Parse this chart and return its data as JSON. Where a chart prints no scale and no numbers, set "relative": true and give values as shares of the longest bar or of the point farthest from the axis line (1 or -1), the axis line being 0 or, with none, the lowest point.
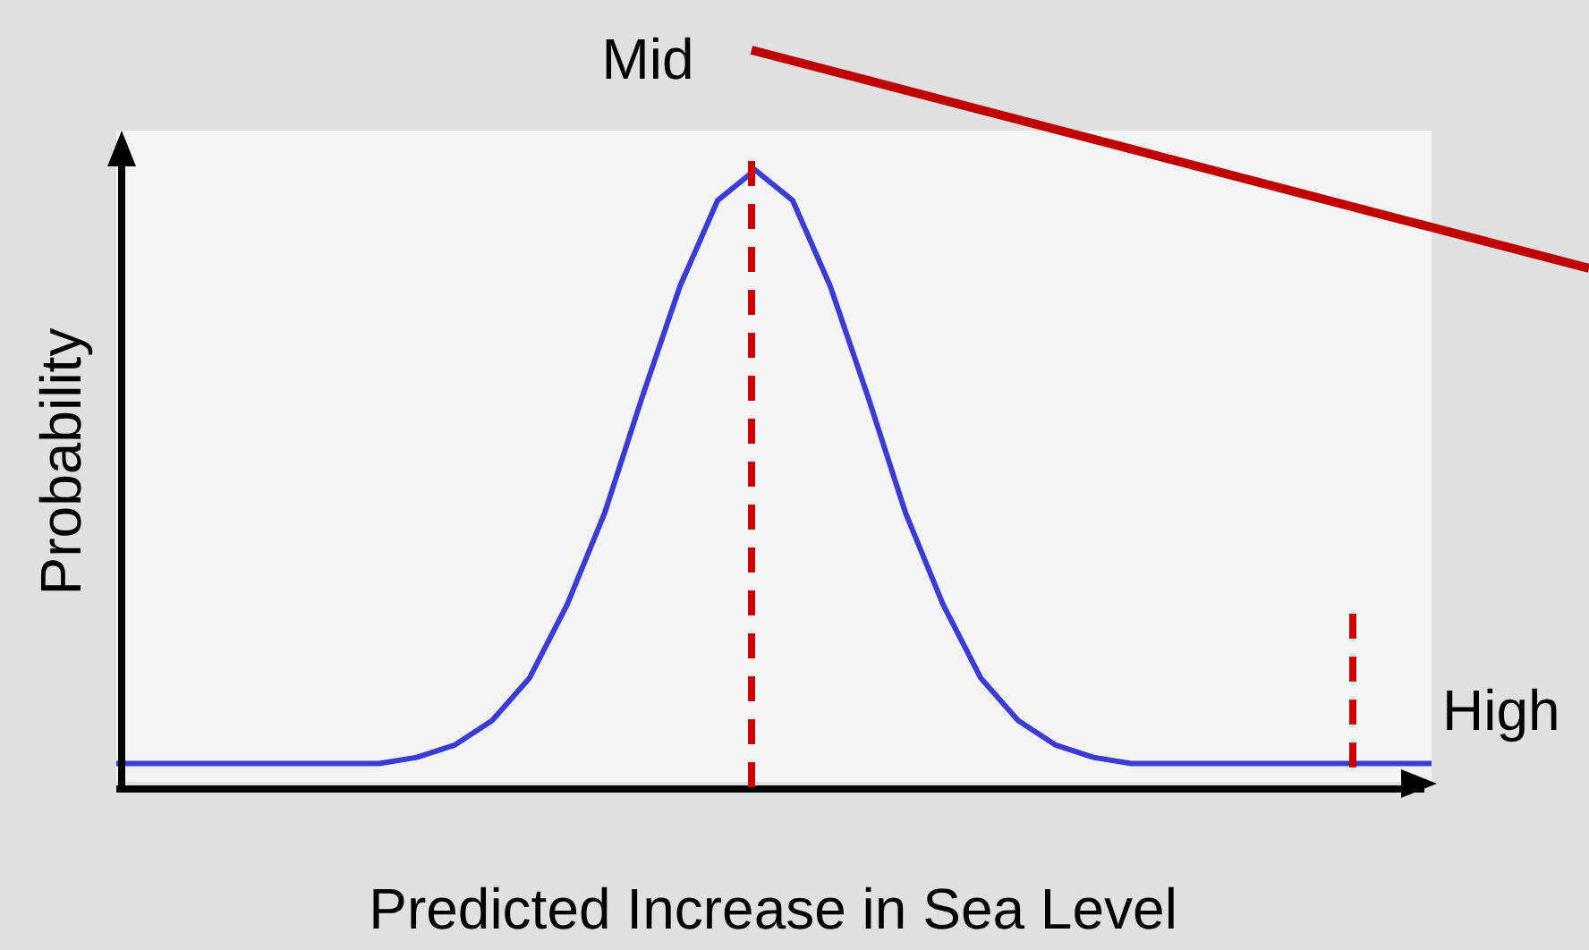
{
  "chart_data": {
    "type": "line",
    "relative": true,
    "xlabel": "Predicted Increase in Sea Level",
    "ylabel": "Probability",
    "marker": "none",
    "legend": false,
    "categories": [
      null,
      null,
      null,
      null,
      null,
      null,
      null,
      null,
      null,
      null,
      null,
      null,
      null,
      null,
      null,
      null,
      null,
      null,
      null,
      null,
      null,
      null,
      null,
      null,
      null,
      null,
      null,
      null,
      null,
      null,
      null,
      null,
      null,
      null,
      null,
      null
    ],
    "series": [
      {
        "color": "#3b3bd6",
        "values": [
          0.03,
          0.03,
          0.03,
          0.03,
          0.03,
          0.03,
          0.03,
          0.03,
          0.04,
          0.06,
          0.1,
          0.17,
          0.29,
          0.44,
          0.63,
          0.81,
          0.95,
          1,
          0.95,
          0.81,
          0.63,
          0.44,
          0.29,
          0.17,
          0.1,
          0.06,
          0.04,
          0.03,
          0.03,
          0.03,
          0.03,
          0.03,
          0.03,
          0.03,
          0.03,
          0.03
        ]
      }
    ],
    "annotations": [
      "Mid",
      "High"
    ]
  }
}
